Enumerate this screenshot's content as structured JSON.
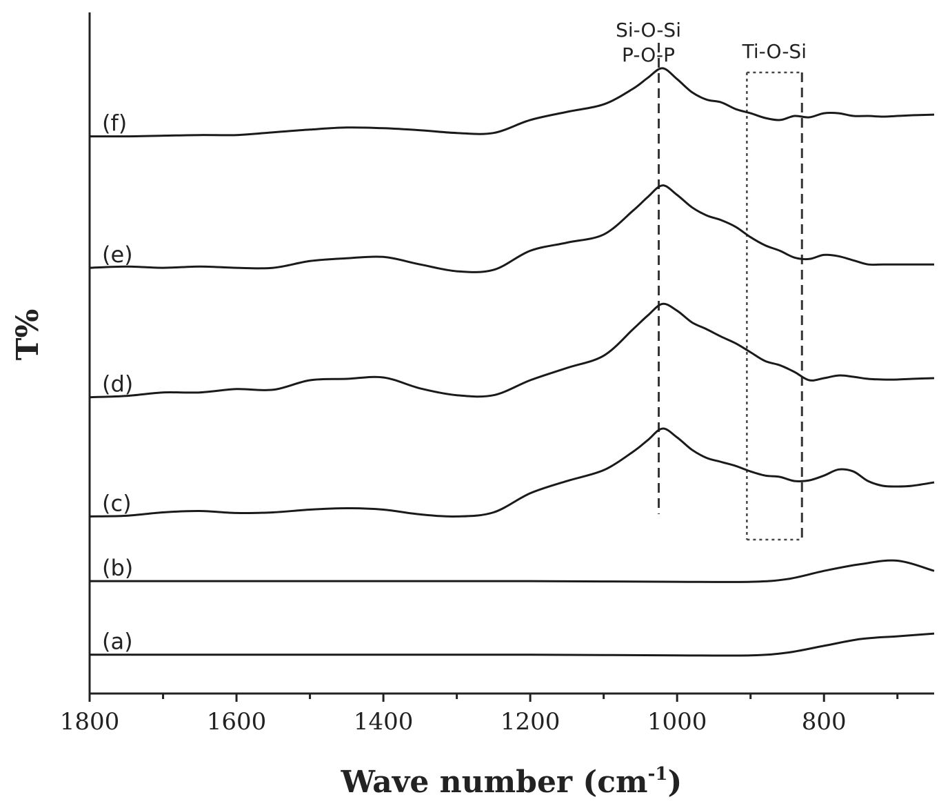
{
  "chart_data": {
    "type": "line",
    "title": "",
    "xlabel": "Wave number (cm",
    "xlabel_sup": "-1",
    "xlabel_close": ")",
    "ylabel": "T%",
    "xlim": [
      1800,
      650
    ],
    "x_reversed": true,
    "x_ticks": [
      1800,
      1600,
      1400,
      1200,
      1000,
      800
    ],
    "x_tick_labels": [
      "1800",
      "1600",
      "1400",
      "1200",
      "1000",
      "800"
    ],
    "x_minor_ticks": [
      1700,
      1500,
      1300,
      1100,
      900,
      700
    ],
    "ylim": [
      0,
      10
    ],
    "y_ticks_shown": false,
    "grid": false,
    "series": [
      {
        "name": "(a)",
        "x": [
          1800,
          1700,
          1600,
          1500,
          1400,
          1300,
          1200,
          1100,
          1000,
          900,
          850,
          800,
          750,
          700,
          650
        ],
        "y": [
          0.57,
          0.57,
          0.57,
          0.57,
          0.57,
          0.57,
          0.57,
          0.565,
          0.56,
          0.56,
          0.6,
          0.7,
          0.8,
          0.84,
          0.88
        ]
      },
      {
        "name": "(b)",
        "x": [
          1800,
          1700,
          1600,
          1500,
          1400,
          1300,
          1200,
          1100,
          1000,
          900,
          850,
          800,
          750,
          700,
          650
        ],
        "y": [
          1.65,
          1.65,
          1.65,
          1.65,
          1.65,
          1.65,
          1.65,
          1.645,
          1.64,
          1.64,
          1.68,
          1.8,
          1.9,
          1.95,
          1.8
        ]
      },
      {
        "name": "(c)",
        "x": [
          1800,
          1750,
          1700,
          1650,
          1600,
          1550,
          1500,
          1450,
          1400,
          1350,
          1300,
          1250,
          1200,
          1150,
          1100,
          1060,
          1040,
          1020,
          1000,
          980,
          960,
          940,
          920,
          900,
          880,
          860,
          840,
          820,
          800,
          780,
          760,
          740,
          720,
          700,
          680,
          650
        ],
        "y": [
          2.6,
          2.61,
          2.66,
          2.68,
          2.65,
          2.66,
          2.7,
          2.72,
          2.7,
          2.63,
          2.6,
          2.66,
          2.94,
          3.12,
          3.28,
          3.55,
          3.72,
          3.89,
          3.76,
          3.58,
          3.46,
          3.4,
          3.34,
          3.26,
          3.2,
          3.18,
          3.12,
          3.13,
          3.2,
          3.29,
          3.26,
          3.12,
          3.05,
          3.04,
          3.05,
          3.1
        ]
      },
      {
        "name": "(d)",
        "x": [
          1800,
          1750,
          1700,
          1650,
          1600,
          1550,
          1500,
          1450,
          1400,
          1350,
          1300,
          1250,
          1200,
          1150,
          1100,
          1060,
          1040,
          1020,
          1000,
          980,
          960,
          940,
          920,
          900,
          880,
          860,
          840,
          820,
          800,
          780,
          760,
          740,
          720,
          700,
          680,
          650
        ],
        "y": [
          4.35,
          4.37,
          4.42,
          4.42,
          4.47,
          4.46,
          4.6,
          4.62,
          4.64,
          4.48,
          4.38,
          4.38,
          4.6,
          4.78,
          4.96,
          5.35,
          5.55,
          5.72,
          5.62,
          5.45,
          5.35,
          5.24,
          5.14,
          5.01,
          4.88,
          4.82,
          4.72,
          4.6,
          4.63,
          4.67,
          4.65,
          4.62,
          4.61,
          4.61,
          4.62,
          4.63
        ]
      },
      {
        "name": "(e)",
        "x": [
          1800,
          1750,
          1700,
          1650,
          1600,
          1550,
          1500,
          1450,
          1400,
          1350,
          1300,
          1250,
          1200,
          1150,
          1100,
          1060,
          1040,
          1020,
          1000,
          980,
          960,
          940,
          920,
          900,
          880,
          860,
          840,
          820,
          800,
          780,
          760,
          740,
          720,
          700,
          680,
          650
        ],
        "y": [
          6.25,
          6.27,
          6.25,
          6.27,
          6.25,
          6.25,
          6.35,
          6.39,
          6.41,
          6.3,
          6.2,
          6.22,
          6.5,
          6.62,
          6.74,
          7.09,
          7.29,
          7.46,
          7.32,
          7.14,
          7.02,
          6.95,
          6.85,
          6.7,
          6.58,
          6.5,
          6.4,
          6.38,
          6.44,
          6.42,
          6.36,
          6.3,
          6.3,
          6.3,
          6.3,
          6.3
        ]
      },
      {
        "name": "(f)",
        "x": [
          1800,
          1750,
          1700,
          1650,
          1600,
          1550,
          1500,
          1450,
          1400,
          1350,
          1300,
          1250,
          1200,
          1150,
          1100,
          1060,
          1040,
          1020,
          1000,
          980,
          960,
          940,
          920,
          900,
          880,
          860,
          840,
          820,
          800,
          780,
          760,
          740,
          720,
          700,
          680,
          650
        ],
        "y": [
          8.18,
          8.18,
          8.19,
          8.2,
          8.2,
          8.24,
          8.28,
          8.31,
          8.3,
          8.27,
          8.23,
          8.23,
          8.42,
          8.54,
          8.65,
          8.88,
          9.04,
          9.18,
          9.02,
          8.83,
          8.72,
          8.68,
          8.58,
          8.52,
          8.45,
          8.42,
          8.48,
          8.46,
          8.52,
          8.52,
          8.48,
          8.48,
          8.47,
          8.48,
          8.49,
          8.5
        ]
      }
    ],
    "annotations": [
      {
        "text_lines": [
          "Si-O-Si",
          "P-O-P"
        ],
        "x": 1025,
        "marker": "dashed-vertical-line"
      },
      {
        "text_lines": [
          "Ti-O-Si"
        ],
        "x_range": [
          905,
          830
        ],
        "marker": "dotted-box"
      }
    ]
  }
}
